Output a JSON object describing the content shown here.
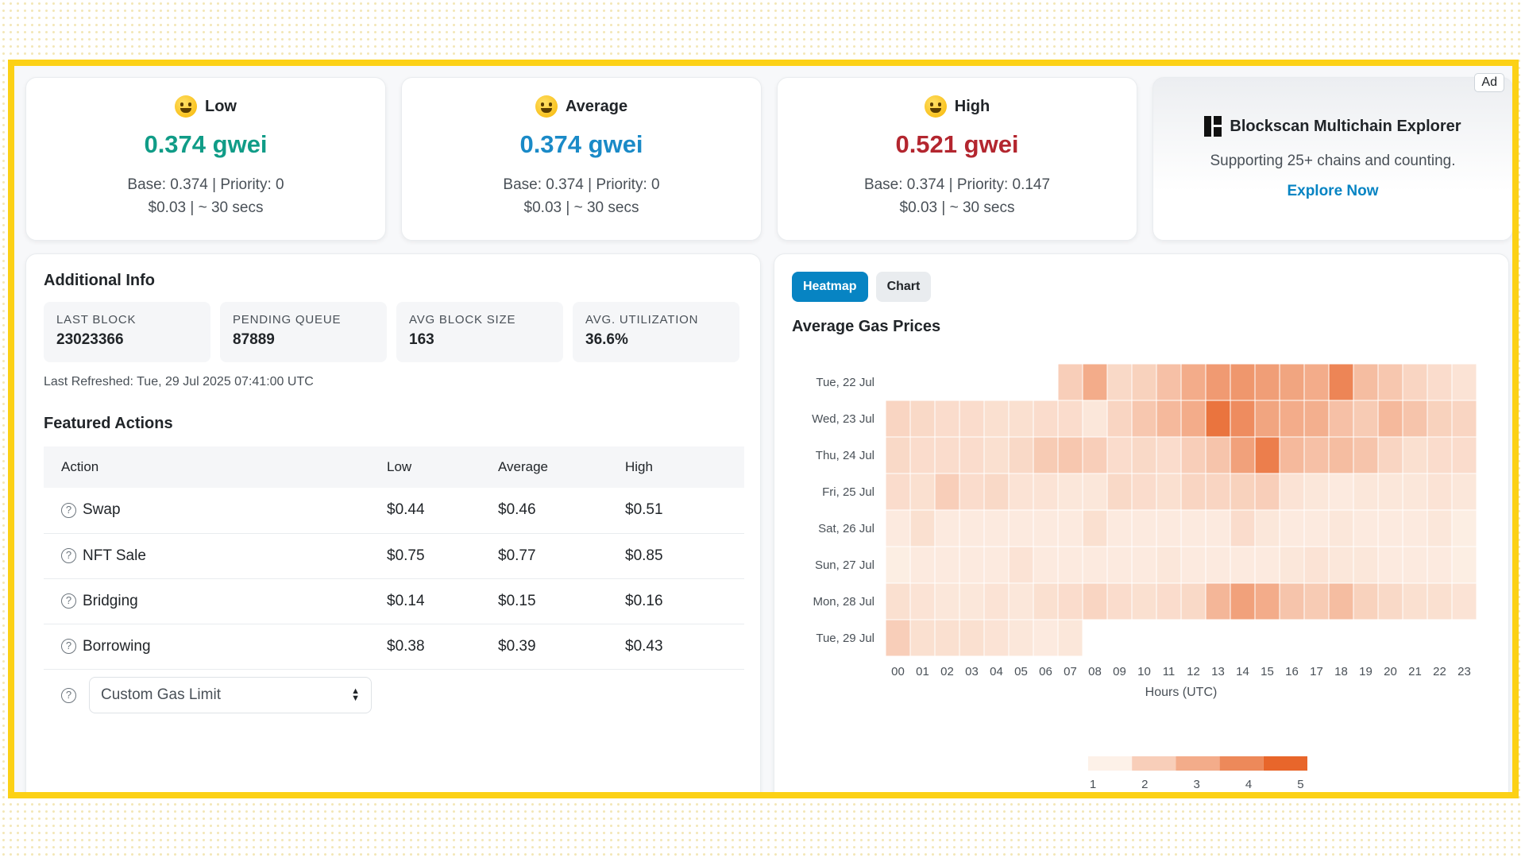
{
  "cards": [
    {
      "label": "Low",
      "gwei": "0.374 gwei",
      "color": "#109c87",
      "base": "Base: 0.374 | Priority: 0",
      "cost": "$0.03 | ~ 30 secs"
    },
    {
      "label": "Average",
      "gwei": "0.374 gwei",
      "color": "#1a8ac7",
      "base": "Base: 0.374 | Priority: 0",
      "cost": "$0.03 | ~ 30 secs"
    },
    {
      "label": "High",
      "gwei": "0.521 gwei",
      "color": "#b3262f",
      "base": "Base: 0.374 | Priority: 0.147",
      "cost": "$0.03 | ~ 30 secs"
    }
  ],
  "ad": {
    "tag": "Ad",
    "title": "Blockscan Multichain Explorer",
    "subtitle": "Supporting 25+ chains and counting.",
    "link": "Explore Now"
  },
  "additional": {
    "title": "Additional Info",
    "stats": [
      {
        "label": "LAST BLOCK",
        "value": "23023366"
      },
      {
        "label": "PENDING QUEUE",
        "value": "87889"
      },
      {
        "label": "AVG BLOCK SIZE",
        "value": "163"
      },
      {
        "label": "AVG. UTILIZATION",
        "value": "36.6%"
      }
    ],
    "refreshed": "Last Refreshed: Tue, 29 Jul 2025 07:41:00 UTC"
  },
  "featured": {
    "title": "Featured Actions",
    "headers": [
      "Action",
      "Low",
      "Average",
      "High"
    ],
    "rows": [
      {
        "action": "Swap",
        "low": "$0.44",
        "avg": "$0.46",
        "high": "$0.51"
      },
      {
        "action": "NFT Sale",
        "low": "$0.75",
        "avg": "$0.77",
        "high": "$0.85"
      },
      {
        "action": "Bridging",
        "low": "$0.14",
        "avg": "$0.15",
        "high": "$0.16"
      },
      {
        "action": "Borrowing",
        "low": "$0.38",
        "avg": "$0.39",
        "high": "$0.43"
      }
    ],
    "custom_placeholder": "Custom Gas Limit"
  },
  "tabs": {
    "heatmap": "Heatmap",
    "chart": "Chart"
  },
  "heat_title": "Average Gas Prices",
  "chart_data": {
    "type": "heatmap",
    "title": "Average Gas Prices",
    "xlabel": "Hours (UTC)",
    "x": [
      "00",
      "01",
      "02",
      "03",
      "04",
      "05",
      "06",
      "07",
      "08",
      "09",
      "10",
      "11",
      "12",
      "13",
      "14",
      "15",
      "16",
      "17",
      "18",
      "19",
      "20",
      "21",
      "22",
      "23"
    ],
    "y": [
      "Tue, 22 Jul",
      "Wed, 23 Jul",
      "Thu, 24 Jul",
      "Fri, 25 Jul",
      "Sat, 26 Jul",
      "Sun, 27 Jul",
      "Mon, 28 Jul",
      "Tue, 29 Jul"
    ],
    "values": [
      [
        null,
        null,
        null,
        null,
        null,
        null,
        null,
        2.0,
        3.0,
        1.7,
        1.9,
        2.4,
        3.0,
        3.5,
        3.6,
        3.4,
        3.2,
        3.0,
        4.1,
        2.5,
        2.2,
        1.8,
        1.6,
        1.4
      ],
      [
        1.8,
        1.7,
        1.6,
        1.6,
        1.5,
        1.5,
        1.6,
        1.6,
        1.3,
        1.8,
        2.2,
        2.6,
        3.0,
        4.6,
        3.9,
        3.2,
        3.0,
        2.9,
        2.4,
        2.1,
        2.6,
        2.3,
        1.9,
        1.8
      ],
      [
        1.7,
        1.6,
        1.6,
        1.6,
        1.5,
        1.7,
        2.1,
        2.2,
        2.0,
        1.6,
        1.7,
        1.6,
        2.0,
        2.3,
        3.3,
        4.3,
        2.6,
        2.4,
        2.5,
        2.3,
        1.8,
        1.5,
        1.6,
        1.6
      ],
      [
        1.6,
        1.5,
        2.0,
        1.6,
        1.7,
        1.4,
        1.4,
        1.3,
        1.3,
        1.7,
        1.6,
        1.5,
        1.8,
        1.8,
        1.9,
        2.0,
        1.4,
        1.3,
        1.2,
        1.3,
        1.3,
        1.3,
        1.4,
        1.3
      ],
      [
        1.2,
        1.5,
        1.2,
        1.2,
        1.2,
        1.2,
        1.2,
        1.2,
        1.5,
        1.2,
        1.2,
        1.2,
        1.2,
        1.2,
        1.6,
        1.3,
        1.2,
        1.2,
        1.3,
        1.2,
        1.2,
        1.2,
        1.3,
        1.1
      ],
      [
        1.1,
        1.2,
        1.2,
        1.2,
        1.2,
        1.4,
        1.2,
        1.2,
        1.2,
        1.2,
        1.2,
        1.3,
        1.2,
        1.2,
        1.2,
        1.2,
        1.3,
        1.4,
        1.3,
        1.3,
        1.2,
        1.2,
        1.2,
        1.1
      ],
      [
        1.5,
        1.4,
        1.3,
        1.3,
        1.4,
        1.3,
        1.5,
        1.6,
        1.8,
        1.6,
        1.5,
        1.6,
        1.7,
        2.7,
        3.3,
        3.0,
        2.3,
        2.1,
        2.5,
        1.9,
        1.7,
        1.5,
        1.5,
        1.4
      ],
      [
        2.0,
        1.5,
        1.5,
        1.5,
        1.4,
        1.3,
        1.2,
        1.3,
        null,
        null,
        null,
        null,
        null,
        null,
        null,
        null,
        null,
        null,
        null,
        null,
        null,
        null,
        null,
        null
      ]
    ],
    "legend_ticks": [
      "1",
      "2",
      "3",
      "4",
      "5"
    ],
    "color_low": "#fdf1e8",
    "color_high": "#e8662b"
  }
}
